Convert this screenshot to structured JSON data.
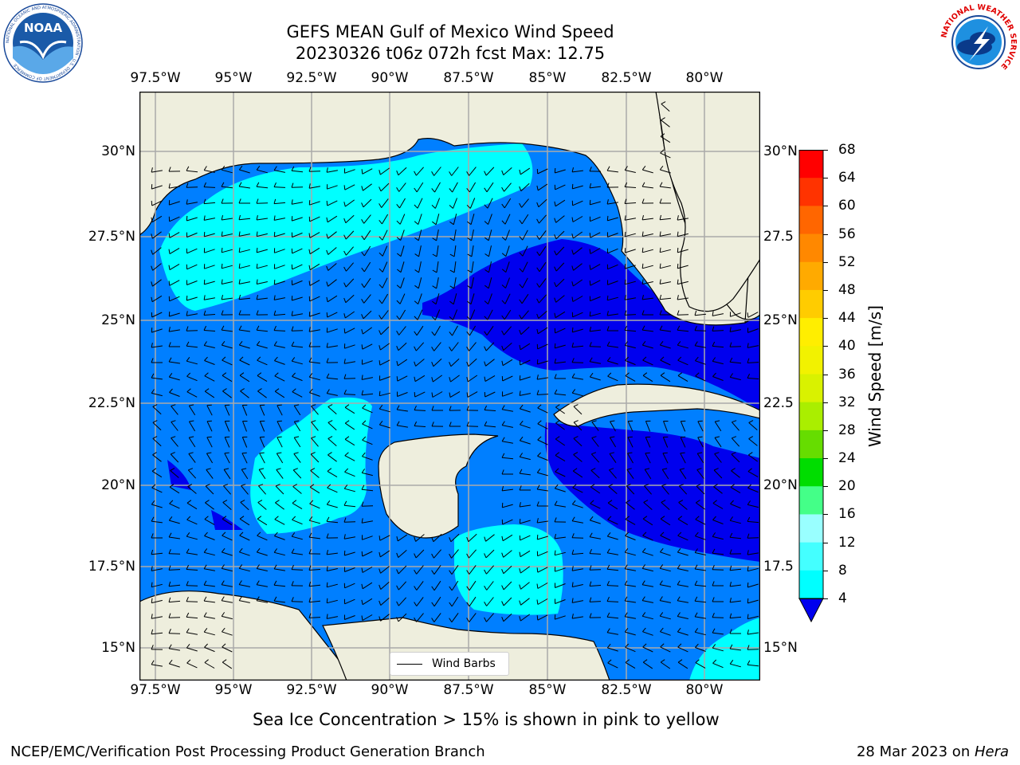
{
  "title": {
    "line1": "GEFS MEAN Gulf of Mexico Wind Speed",
    "line2": "20230326 t06z 072h fcst   Max: 12.75"
  },
  "axes": {
    "lon_ticks": [
      "97.5°W",
      "95°W",
      "92.5°W",
      "90°W",
      "87.5°W",
      "85°W",
      "82.5°W",
      "80°W"
    ],
    "lat_ticks_left": [
      "30°N",
      "27.5°N",
      "25°N",
      "22.5°N",
      "20°N",
      "17.5°N",
      "15°N"
    ],
    "lat_ticks_right": [
      "30°N",
      "27.5",
      "25°N",
      "22.5",
      "20°N",
      "17.5",
      "15°N"
    ]
  },
  "colorbar": {
    "label": "Wind Speed [m/s]",
    "ticks": [
      "68",
      "64",
      "60",
      "56",
      "52",
      "48",
      "44",
      "40",
      "36",
      "32",
      "28",
      "24",
      "20",
      "16",
      "12",
      "8",
      "4"
    ],
    "colors": [
      "#ff0000",
      "#ff3300",
      "#ff6600",
      "#ff8800",
      "#ffaa00",
      "#ffcc00",
      "#ffee00",
      "#f2f200",
      "#d9f200",
      "#aaee00",
      "#66dd00",
      "#00dd00",
      "#44ff88",
      "#99ffff",
      "#44ffff",
      "#00ffff",
      "#007fff"
    ],
    "extend_color": "#0000ee"
  },
  "legend": {
    "label": "Wind Barbs"
  },
  "footer": {
    "note": "Sea Ice Concentration > 15% is shown in pink to yellow",
    "left": "NCEP/EMC/Verification Post Processing Product Generation Branch",
    "right_prefix": "28 Mar 2023 on ",
    "right_host": "Hera"
  },
  "logos": {
    "noaa": "NOAA",
    "noaa_ring": "NATIONAL OCEANIC AND ATMOSPHERIC ADMINISTRATION · U.S. DEPARTMENT OF COMMERCE",
    "nws_ring": "NATIONAL WEATHER SERVICE"
  },
  "colors": {
    "land": "#eeeedd",
    "speed_4_8": "#007fff",
    "speed_8_12": "#00ffff",
    "speed_below_4": "#0000ee",
    "grid": "#aaaaaa"
  }
}
